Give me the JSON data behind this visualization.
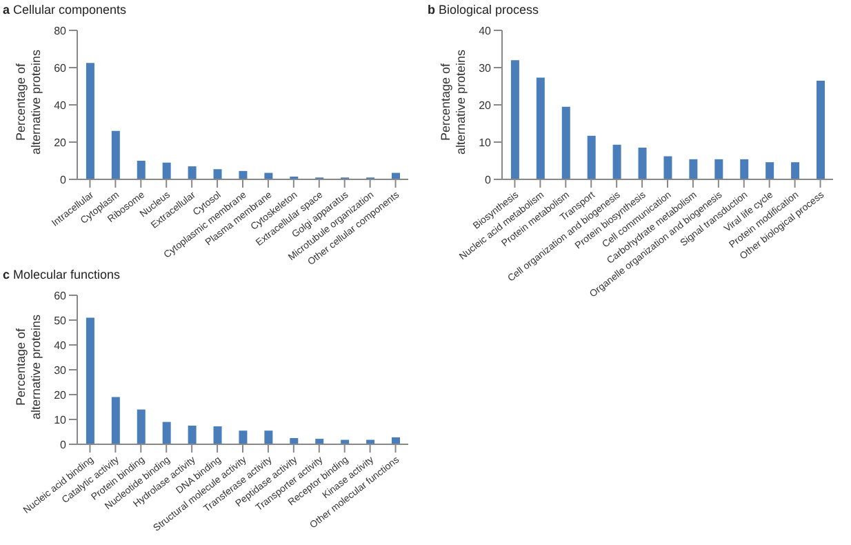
{
  "chart_data": [
    {
      "type": "bar",
      "title": "a Cellular components",
      "ylabel": "Percentage of alternative proteins",
      "categories": [
        "Intracellular",
        "Cytoplasm",
        "Ribosome",
        "Nucleus",
        "Extracellular",
        "Cytosol",
        "Cytoplasmic membrane",
        "Plasma membrane",
        "Cytoskeleton",
        "Extracellular space",
        "Golgi apparatus",
        "Microtubule organization",
        "Other cellular components"
      ],
      "values": [
        62.5,
        26,
        10,
        9,
        7,
        5.5,
        4.5,
        3.5,
        1.5,
        1,
        1,
        1,
        3.5
      ],
      "color": "#4a7ebb",
      "ylim": [
        0,
        80
      ],
      "yticks": [
        0,
        20,
        40,
        60,
        80
      ],
      "grid": false
    },
    {
      "type": "bar",
      "title": "b Biological process",
      "ylabel": "Percentage of alternative proteins",
      "categories": [
        "Biosynthesis",
        "Nucleic acid metabolism",
        "Protein metabolism",
        "Transport",
        "Cell organization and biogenesis",
        "Protein biosynthesis",
        "Cell communication",
        "Carbohydrate metabolism",
        "Organelle organization and biogenesis",
        "Signal transduction",
        "Viral life cycle",
        "Protein modification",
        "Other biological process"
      ],
      "values": [
        32,
        27.3,
        19.5,
        11.7,
        9.3,
        8.5,
        6.2,
        5.4,
        5.4,
        5.4,
        4.6,
        4.6,
        26.5
      ],
      "color": "#4a7ebb",
      "ylim": [
        0,
        40
      ],
      "yticks": [
        0,
        10,
        20,
        30,
        40
      ],
      "grid": false
    },
    {
      "type": "bar",
      "title": "c Molecular functions",
      "ylabel": "Percentage of alternative proteins",
      "categories": [
        "Nucleic acid binding",
        "Catalytic activity",
        "Protein binding",
        "Nucleotide binding",
        "Hydrolase activity",
        "DNA binding",
        "Structural molecule activity",
        "Transferase activity",
        "Peptidase activity",
        "Transporter activity",
        "Receptor binding",
        "Kinase activity",
        "Other molecular functions"
      ],
      "values": [
        51,
        19,
        14,
        9,
        7.5,
        7.2,
        5.5,
        5.5,
        2.5,
        2.2,
        1.8,
        1.8,
        2.8
      ],
      "color": "#4a7ebb",
      "ylim": [
        0,
        60
      ],
      "yticks": [
        0,
        10,
        20,
        30,
        40,
        50,
        60
      ],
      "grid": false
    }
  ]
}
